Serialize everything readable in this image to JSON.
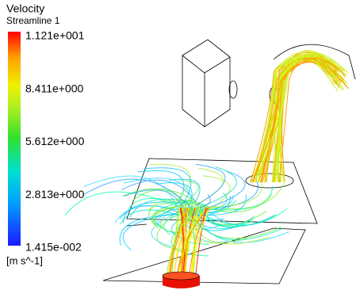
{
  "legend": {
    "title": "Velocity",
    "subtitle": "Streamline 1",
    "labels": [
      "1.121e+001",
      "8.411e+000",
      "5.612e+000",
      "2.813e+000",
      "1.415e-002"
    ],
    "unit": "[m s^-1]"
  }
}
